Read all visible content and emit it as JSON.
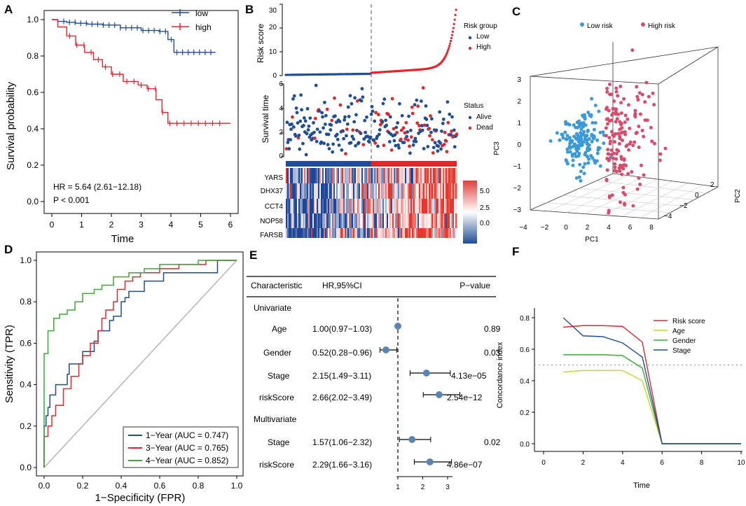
{
  "panels": {
    "A": "A",
    "B": "B",
    "C": "C",
    "D": "D",
    "E": "E",
    "F": "F"
  },
  "colors": {
    "low": "#1f4e96",
    "high": "#e4262c",
    "lowC": "#3a9ad9",
    "highC": "#db4a6b",
    "roc1": "#1f4e96",
    "roc3": "#e4262c",
    "roc4": "#3aaa35",
    "risk": "#e4262c",
    "age": "#c8d42a",
    "gender": "#3aaa35",
    "stage": "#1f4e96"
  },
  "chart_data": [
    {
      "panel": "A",
      "type": "line",
      "title": "",
      "xlabel": "Time",
      "ylabel": "Survival probability",
      "xlim": [
        0,
        6
      ],
      "ylim": [
        0,
        1
      ],
      "xticks": [
        "0",
        "1",
        "2",
        "3",
        "4",
        "5",
        "6"
      ],
      "yticks": [
        "0.0",
        "0.2",
        "0.4",
        "0.6",
        "0.8",
        "1.0"
      ],
      "legend": [
        "low",
        "high"
      ],
      "annotations": [
        "HR = 5.64 (2.61−12.18)",
        "P < 0.001"
      ],
      "series": [
        {
          "name": "low",
          "x": [
            0,
            0.2,
            0.5,
            0.8,
            1.2,
            1.7,
            2.3,
            3.0,
            3.6,
            3.9,
            4.1,
            5.5
          ],
          "y": [
            1.0,
            0.99,
            0.985,
            0.98,
            0.975,
            0.97,
            0.955,
            0.94,
            0.935,
            0.89,
            0.82,
            0.82
          ]
        },
        {
          "name": "high",
          "x": [
            0,
            0.2,
            0.5,
            0.8,
            1.1,
            1.4,
            1.7,
            2.0,
            2.4,
            2.9,
            3.2,
            3.5,
            3.7,
            3.9,
            6.0
          ],
          "y": [
            1.0,
            0.96,
            0.91,
            0.86,
            0.82,
            0.78,
            0.74,
            0.7,
            0.66,
            0.64,
            0.62,
            0.56,
            0.49,
            0.43,
            0.43
          ]
        }
      ]
    },
    {
      "panel": "B",
      "type": "scatter",
      "top": {
        "ylabel": "Risk score",
        "yticks": [
          "0",
          "10",
          "20",
          "30"
        ],
        "legend_title": "Risk group",
        "legend": [
          "Low",
          "High"
        ]
      },
      "middle": {
        "ylabel": "Survival time",
        "yticks": [
          "0",
          "2",
          "4",
          "6"
        ],
        "legend_title": "Status",
        "legend": [
          "Alive",
          "Dead"
        ]
      },
      "heatmap": {
        "genes": [
          "YARS",
          "DHX37",
          "CCT4",
          "NOP58",
          "FARSB"
        ],
        "scale": [
          "5.0",
          "2.5",
          "0.0"
        ]
      }
    },
    {
      "panel": "C",
      "type": "scatter",
      "legend": [
        "Low risk",
        "High risk"
      ],
      "xlabel": "PC1",
      "ylabel": "PC3",
      "zlabel": "PC2",
      "xticks": [
        "−4",
        "−2",
        "0",
        "2",
        "4",
        "6",
        "8"
      ],
      "yticks": [
        "−3",
        "−2",
        "−1",
        "0",
        "1",
        "2",
        "3"
      ],
      "zticks": [
        "−4",
        "−2",
        "0",
        "2"
      ]
    },
    {
      "panel": "D",
      "type": "line",
      "xlabel": "1−Specificity (FPR)",
      "ylabel": "Sensitivity (TPR)",
      "xlim": [
        0,
        1
      ],
      "ylim": [
        0,
        1
      ],
      "ticks": [
        "0.0",
        "0.2",
        "0.4",
        "0.6",
        "0.8",
        "1.0"
      ],
      "series": [
        {
          "name": "1−Year (AUC = 0.747)",
          "x": [
            0,
            0.01,
            0.02,
            0.03,
            0.06,
            0.08,
            0.12,
            0.13,
            0.2,
            0.22,
            0.26,
            0.28,
            0.34,
            0.36,
            0.4,
            0.42,
            0.44,
            0.52,
            0.62,
            0.78,
            0.8,
            0.9,
            0.92,
            1.0
          ],
          "y": [
            0,
            0.2,
            0.25,
            0.29,
            0.35,
            0.4,
            0.4,
            0.45,
            0.5,
            0.56,
            0.56,
            0.61,
            0.66,
            0.71,
            0.73,
            0.8,
            0.82,
            0.85,
            0.9,
            0.94,
            0.94,
            0.94,
            1.0,
            1.0
          ]
        },
        {
          "name": "3−Year (AUC = 0.765)",
          "x": [
            0,
            0.02,
            0.04,
            0.06,
            0.1,
            0.14,
            0.18,
            0.2,
            0.24,
            0.28,
            0.3,
            0.32,
            0.36,
            0.38,
            0.42,
            0.46,
            0.5,
            0.6,
            0.7,
            0.84,
            0.9,
            1.0
          ],
          "y": [
            0,
            0.15,
            0.2,
            0.25,
            0.3,
            0.38,
            0.44,
            0.5,
            0.54,
            0.6,
            0.66,
            0.72,
            0.76,
            0.8,
            0.86,
            0.9,
            0.92,
            0.94,
            0.96,
            0.98,
            1.0,
            1.0
          ]
        },
        {
          "name": "4−Year (AUC = 0.852)",
          "x": [
            0,
            0.005,
            0.02,
            0.05,
            0.08,
            0.12,
            0.16,
            0.2,
            0.26,
            0.3,
            0.36,
            0.44,
            0.52,
            0.6,
            0.7,
            0.8,
            0.96,
            1.0
          ],
          "y": [
            0,
            0.55,
            0.55,
            0.66,
            0.72,
            0.74,
            0.76,
            0.8,
            0.84,
            0.86,
            0.88,
            0.92,
            0.94,
            0.96,
            0.98,
            0.98,
            1.0,
            1.0
          ]
        }
      ]
    },
    {
      "panel": "E",
      "type": "table",
      "headers": [
        "Characteristic",
        "HR,95%CI",
        "P−value"
      ],
      "groups": [
        "Univariate",
        "Multivariate"
      ],
      "rows": [
        {
          "name": "Age",
          "hr_text": "1.00(0.97−1.03)",
          "p": "0.89",
          "hr": 1.0,
          "lo": 0.97,
          "hi": 1.03
        },
        {
          "name": "Gender",
          "hr_text": "0.52(0.28−0.96)",
          "p": "0.03",
          "hr": 0.52,
          "lo": 0.28,
          "hi": 0.96
        },
        {
          "name": "Stage",
          "hr_text": "2.15(1.49−3.11)",
          "p": "4.13e−05",
          "hr": 2.15,
          "lo": 1.49,
          "hi": 3.11
        },
        {
          "name": "riskScore",
          "hr_text": "2.66(2.02−3.49)",
          "p": "2.54e−12",
          "hr": 2.66,
          "lo": 2.02,
          "hi": 3.49
        },
        {
          "name": "Stage",
          "hr_text": "1.57(1.06−2.32)",
          "p": "0.02",
          "hr": 1.57,
          "lo": 1.06,
          "hi": 2.32
        },
        {
          "name": "riskScore",
          "hr_text": "2.29(1.66−3.16)",
          "p": "4.86e−07",
          "hr": 2.29,
          "lo": 1.66,
          "hi": 3.16
        }
      ],
      "xticks": [
        "1",
        "2",
        "3"
      ]
    },
    {
      "panel": "F",
      "type": "line",
      "xlabel": "Time",
      "ylabel": "Concordance index",
      "xlim": [
        0,
        10
      ],
      "ylim": [
        0,
        0.85
      ],
      "xticks": [
        "0",
        "2",
        "4",
        "6",
        "8",
        "10"
      ],
      "yticks": [
        "0.0",
        "0.2",
        "0.4",
        "0.6",
        "0.8"
      ],
      "reference": 0.5,
      "series": [
        {
          "name": "Risk score",
          "x": [
            1,
            2,
            3,
            4,
            5,
            6,
            10
          ],
          "y": [
            0.74,
            0.75,
            0.75,
            0.745,
            0.645,
            0.0,
            0.0
          ]
        },
        {
          "name": "Age",
          "x": [
            1,
            2,
            3,
            4,
            5,
            6,
            10
          ],
          "y": [
            0.455,
            0.465,
            0.465,
            0.465,
            0.4,
            0.0,
            0.0
          ]
        },
        {
          "name": "Gender",
          "x": [
            1,
            2,
            3,
            4,
            5,
            6,
            10
          ],
          "y": [
            0.565,
            0.565,
            0.565,
            0.56,
            0.48,
            0.0,
            0.0
          ]
        },
        {
          "name": "Stage",
          "x": [
            1,
            2,
            3,
            4,
            5,
            6,
            10
          ],
          "y": [
            0.8,
            0.685,
            0.68,
            0.64,
            0.55,
            0.0,
            0.0
          ]
        }
      ]
    }
  ]
}
